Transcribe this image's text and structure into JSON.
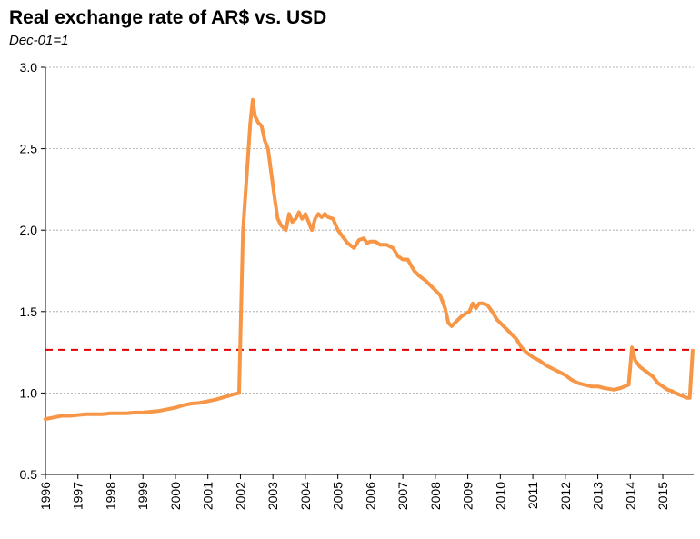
{
  "chart_data": {
    "type": "line",
    "title": "Real exchange rate of AR$ vs. USD",
    "subtitle": "Dec-01=1",
    "xlabel": "",
    "ylabel": "",
    "ylim": [
      0.5,
      3.0
    ],
    "xlim": [
      1996.0,
      2015.95
    ],
    "y_ticks": [
      "0.5",
      "1.0",
      "1.5",
      "2.0",
      "2.5",
      "3.0"
    ],
    "x_ticks": [
      "1996",
      "1997",
      "1998",
      "1999",
      "2000",
      "2001",
      "2002",
      "2003",
      "2004",
      "2005",
      "2006",
      "2007",
      "2008",
      "2009",
      "2010",
      "2011",
      "2012",
      "2013",
      "2014",
      "2015"
    ],
    "grid": "horizontal",
    "colors": {
      "series": "#f79646",
      "reference": "#e00000",
      "grid": "#a0a0a0"
    },
    "reference_line": {
      "y": 1.265,
      "style": "dashed"
    },
    "series": [
      {
        "x": [
          1996.0,
          1996.25,
          1996.5,
          1996.75,
          1997.0,
          1997.25,
          1997.5,
          1997.75,
          1998.0,
          1998.25,
          1998.5,
          1998.75,
          1999.0,
          1999.25,
          1999.5,
          1999.75,
          2000.0,
          2000.25,
          2000.5,
          2000.75,
          2001.0,
          2001.25,
          2001.5,
          2001.75,
          2001.96,
          2002.08,
          2002.2,
          2002.3,
          2002.38,
          2002.45,
          2002.55,
          2002.65,
          2002.75,
          2002.85,
          2002.95,
          2003.05,
          2003.15,
          2003.25,
          2003.4,
          2003.5,
          2003.6,
          2003.7,
          2003.8,
          2003.9,
          2004.0,
          2004.1,
          2004.2,
          2004.3,
          2004.4,
          2004.5,
          2004.6,
          2004.7,
          2004.85,
          2005.0,
          2005.15,
          2005.3,
          2005.5,
          2005.65,
          2005.8,
          2005.9,
          2006.0,
          2006.15,
          2006.3,
          2006.5,
          2006.7,
          2006.85,
          2007.0,
          2007.15,
          2007.35,
          2007.5,
          2007.7,
          2007.85,
          2008.0,
          2008.15,
          2008.3,
          2008.4,
          2008.5,
          2008.65,
          2008.8,
          2008.95,
          2009.05,
          2009.15,
          2009.25,
          2009.35,
          2009.45,
          2009.6,
          2009.75,
          2009.9,
          2010.0,
          2010.15,
          2010.3,
          2010.5,
          2010.65,
          2010.8,
          2011.0,
          2011.2,
          2011.4,
          2011.6,
          2011.8,
          2012.0,
          2012.2,
          2012.4,
          2012.6,
          2012.8,
          2013.0,
          2013.2,
          2013.5,
          2013.7,
          2013.95,
          2014.05,
          2014.15,
          2014.3,
          2014.5,
          2014.7,
          2014.85,
          2015.0,
          2015.15,
          2015.3,
          2015.5,
          2015.75,
          2015.83,
          2015.92
        ],
        "y": [
          0.84,
          0.85,
          0.86,
          0.86,
          0.865,
          0.87,
          0.87,
          0.87,
          0.875,
          0.875,
          0.875,
          0.88,
          0.88,
          0.885,
          0.89,
          0.9,
          0.91,
          0.925,
          0.935,
          0.94,
          0.95,
          0.96,
          0.975,
          0.99,
          1.0,
          2.0,
          2.35,
          2.65,
          2.8,
          2.7,
          2.66,
          2.64,
          2.55,
          2.5,
          2.35,
          2.2,
          2.07,
          2.03,
          2.0,
          2.1,
          2.05,
          2.07,
          2.11,
          2.07,
          2.1,
          2.05,
          2.0,
          2.07,
          2.1,
          2.08,
          2.1,
          2.08,
          2.07,
          2.0,
          1.96,
          1.92,
          1.89,
          1.94,
          1.95,
          1.92,
          1.93,
          1.93,
          1.91,
          1.91,
          1.89,
          1.84,
          1.82,
          1.82,
          1.75,
          1.72,
          1.69,
          1.66,
          1.63,
          1.6,
          1.52,
          1.43,
          1.41,
          1.44,
          1.47,
          1.49,
          1.5,
          1.55,
          1.52,
          1.55,
          1.55,
          1.54,
          1.5,
          1.45,
          1.43,
          1.4,
          1.37,
          1.33,
          1.28,
          1.25,
          1.22,
          1.2,
          1.17,
          1.15,
          1.13,
          1.11,
          1.08,
          1.06,
          1.05,
          1.04,
          1.04,
          1.03,
          1.02,
          1.03,
          1.05,
          1.28,
          1.2,
          1.16,
          1.13,
          1.1,
          1.06,
          1.04,
          1.02,
          1.01,
          0.99,
          0.97,
          0.97,
          1.26
        ]
      }
    ]
  }
}
